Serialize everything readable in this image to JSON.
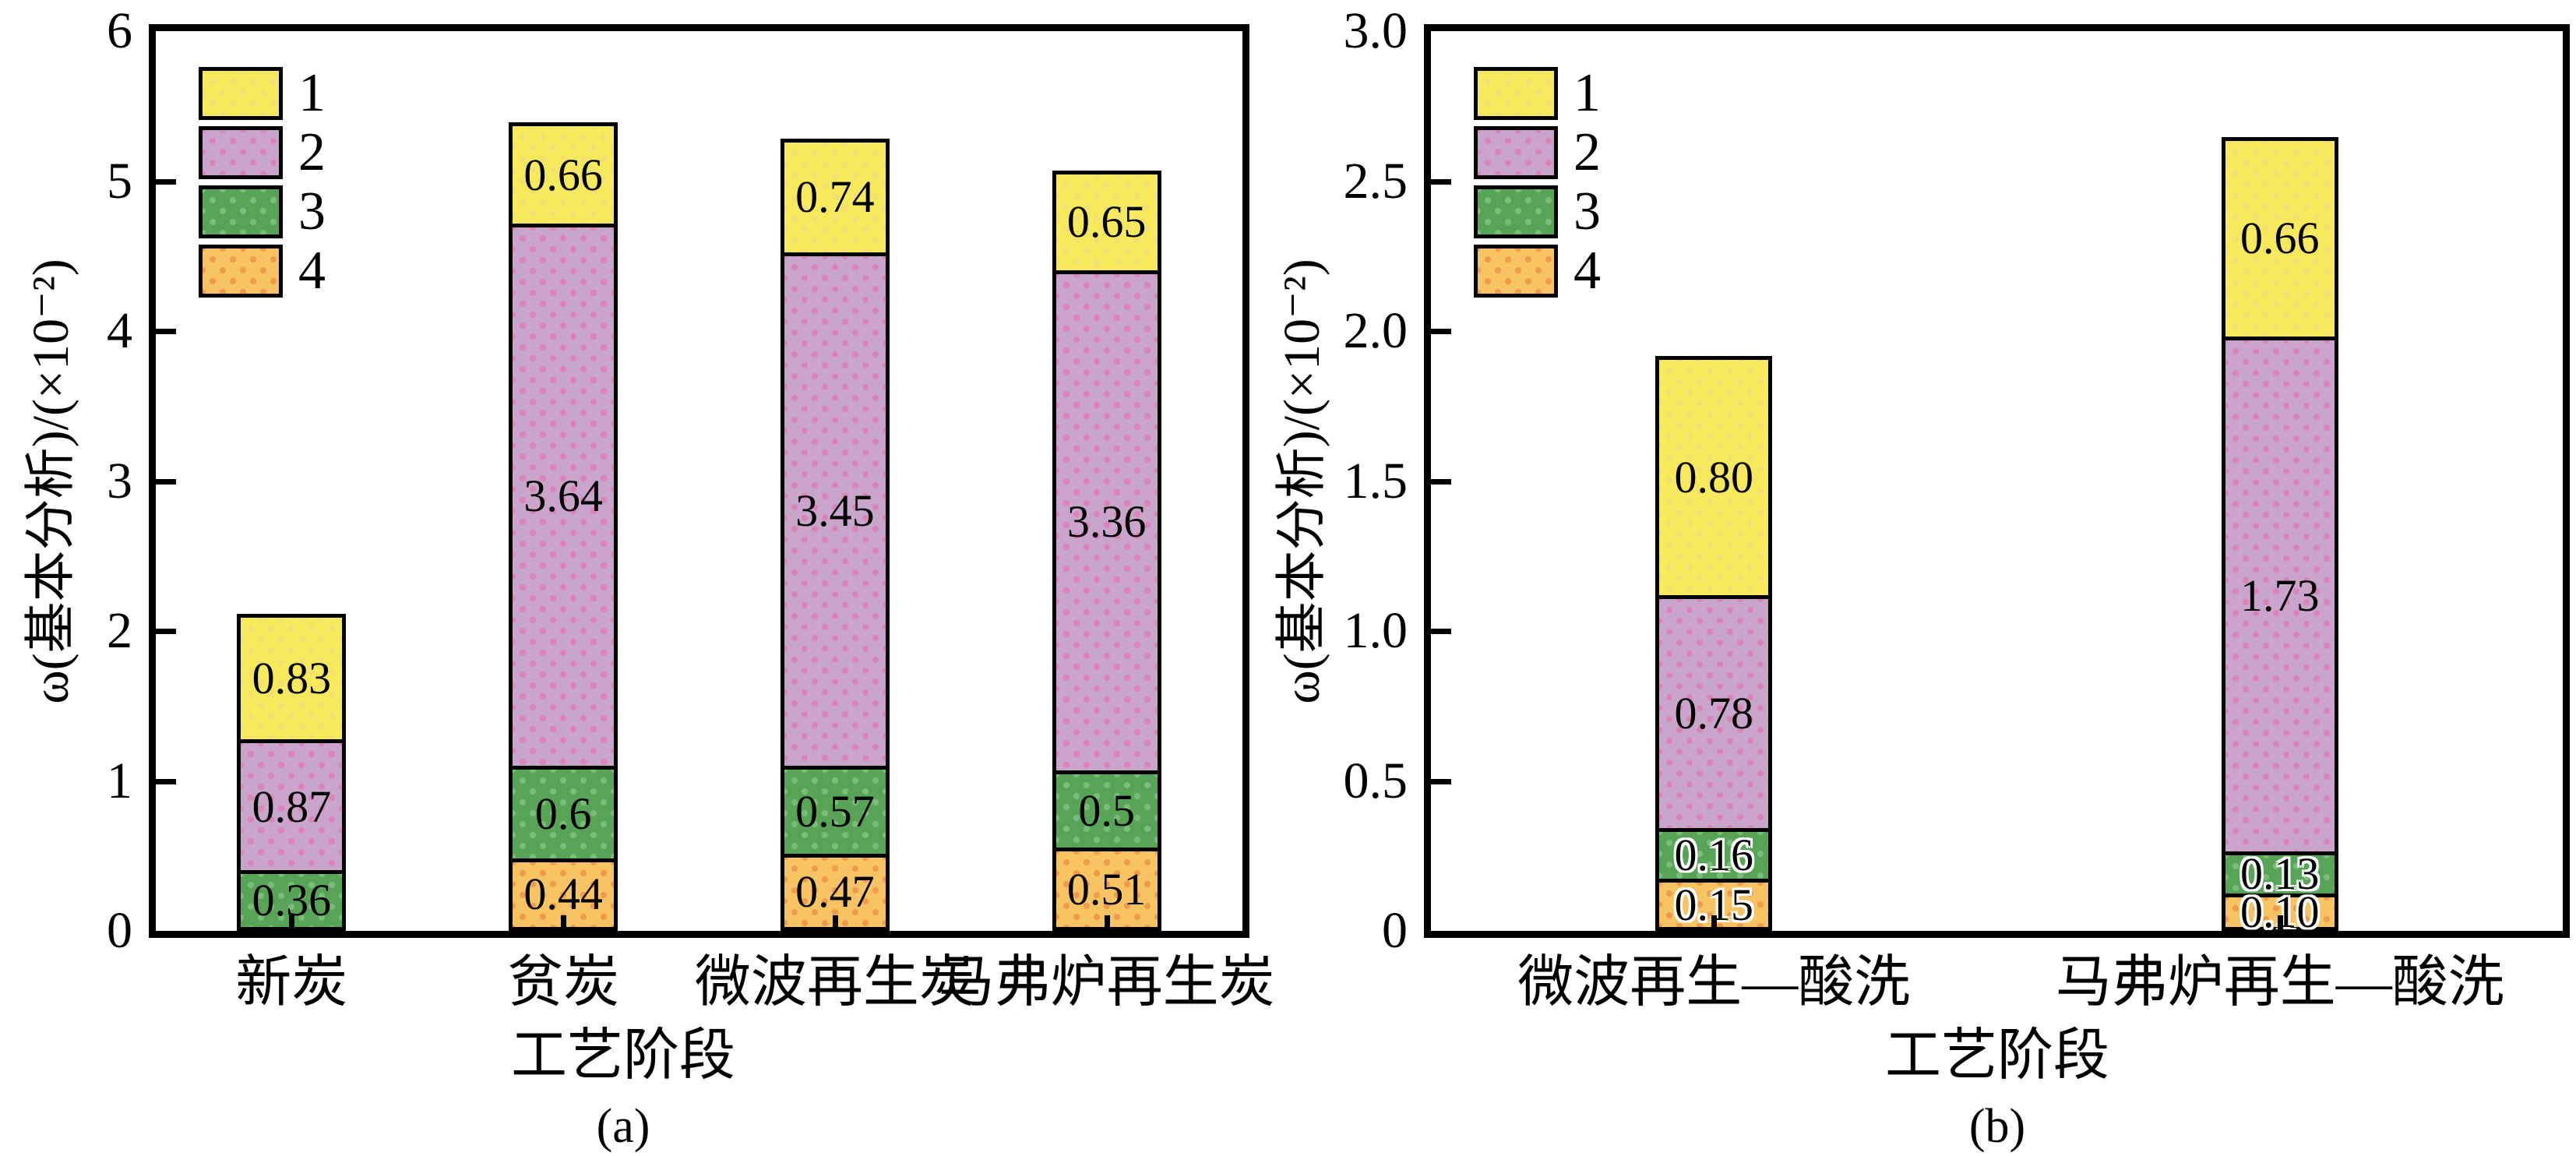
{
  "figure": {
    "background": "#ffffff",
    "axis_color": "#000000",
    "text_color": "#000000"
  },
  "colors": {
    "series_fill": {
      "1": "#F7E95C",
      "2": "#C9A5CC",
      "3": "#57A457",
      "4": "#F8C363"
    },
    "series_dot": {
      "1": "#F3E070",
      "2": "#DB84B6",
      "3": "#7ABD7A",
      "4": "#EE9B4C"
    }
  },
  "chart_data": [
    {
      "type": "bar",
      "stacked": true,
      "caption": "(a)",
      "xlabel": "工艺阶段",
      "ylabel": "ω(基本分析)/(×10⁻²)",
      "ylim": [
        0,
        6
      ],
      "yticks": [
        "0",
        "1",
        "2",
        "3",
        "4",
        "5",
        "6"
      ],
      "grid": false,
      "legend": [
        "1",
        "2",
        "3",
        "4"
      ],
      "legend_position": "top-left",
      "categories": [
        "新炭",
        "贫炭",
        "微波再生炭",
        "马弗炉再生炭"
      ],
      "series": [
        {
          "name": "4",
          "values": [
            0,
            0.44,
            0.47,
            0.51
          ],
          "labels": [
            "",
            "0.44",
            "0.47",
            "0.51"
          ]
        },
        {
          "name": "3",
          "values": [
            0.36,
            0.6,
            0.57,
            0.5
          ],
          "labels": [
            "0.36",
            "0.6",
            "0.57",
            "0.5"
          ]
        },
        {
          "name": "2",
          "values": [
            0.87,
            3.64,
            3.45,
            3.36
          ],
          "labels": [
            "0.87",
            "3.64",
            "3.45",
            "3.36"
          ]
        },
        {
          "name": "1",
          "values": [
            0.83,
            0.66,
            0.74,
            0.65
          ],
          "labels": [
            "0.83",
            "0.66",
            "0.74",
            "0.65"
          ]
        }
      ]
    },
    {
      "type": "bar",
      "stacked": true,
      "caption": "(b)",
      "xlabel": "工艺阶段",
      "ylabel": "ω(基本分析)/(×10⁻²)",
      "ylim": [
        0,
        3
      ],
      "yticks": [
        "0",
        "0.5",
        "1.0",
        "1.5",
        "2.0",
        "2.5",
        "3.0"
      ],
      "grid": false,
      "legend": [
        "1",
        "2",
        "3",
        "4"
      ],
      "legend_position": "top-left",
      "categories": [
        "微波再生—酸洗",
        "马弗炉再生—酸洗"
      ],
      "series": [
        {
          "name": "4",
          "values": [
            0.15,
            0.1
          ],
          "labels": [
            "0.15",
            "0.10"
          ]
        },
        {
          "name": "3",
          "values": [
            0.16,
            0.13
          ],
          "labels": [
            "0.16",
            "0.13"
          ]
        },
        {
          "name": "2",
          "values": [
            0.78,
            1.73
          ],
          "labels": [
            "0.78",
            "1.73"
          ]
        },
        {
          "name": "1",
          "values": [
            0.8,
            0.66
          ],
          "labels": [
            "0.80",
            "0.66"
          ]
        }
      ]
    }
  ]
}
